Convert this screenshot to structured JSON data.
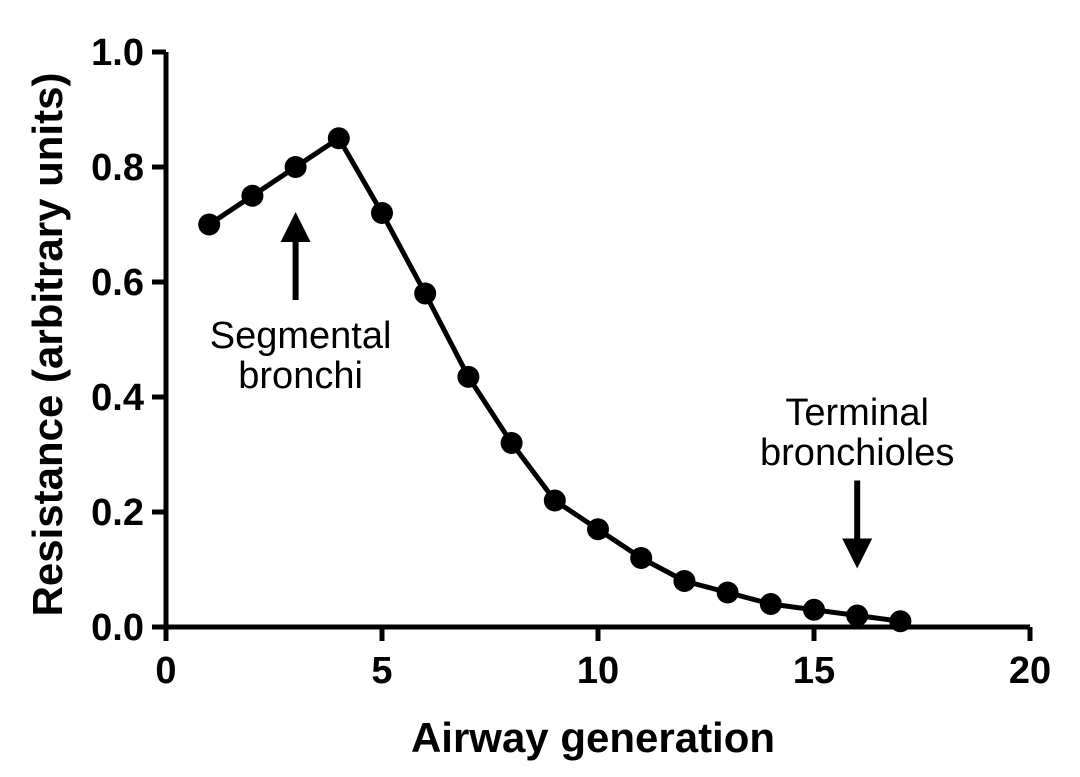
{
  "chart_data": {
    "type": "line",
    "title": "",
    "xlabel": "Airway generation",
    "ylabel": "Resistance (arbitrary units)",
    "xlim": [
      0,
      20
    ],
    "ylim": [
      0,
      1.0
    ],
    "x_ticks": [
      0,
      5,
      10,
      15,
      20
    ],
    "y_ticks": [
      "0.0",
      "0.2",
      "0.4",
      "0.6",
      "0.8",
      "1.0"
    ],
    "grid": false,
    "series": [
      {
        "name": "Resistance",
        "x": [
          1,
          2,
          3,
          4,
          5,
          6,
          7,
          8,
          9,
          10,
          11,
          12,
          13,
          14,
          15,
          16,
          17
        ],
        "values": [
          0.7,
          0.75,
          0.8,
          0.85,
          0.72,
          0.58,
          0.435,
          0.32,
          0.22,
          0.17,
          0.12,
          0.08,
          0.06,
          0.04,
          0.03,
          0.02,
          0.01
        ]
      }
    ],
    "annotations": [
      {
        "lines": [
          "Segmental",
          "bronchi"
        ],
        "target_x": 3,
        "target_y": 0.8,
        "arrow": "up"
      },
      {
        "lines": [
          "Terminal",
          "bronchioles"
        ],
        "target_x": 16,
        "target_y": 0.02,
        "arrow": "down"
      }
    ],
    "colors": {
      "line": "#000000",
      "marker": "#000000",
      "axis": "#000000"
    }
  }
}
